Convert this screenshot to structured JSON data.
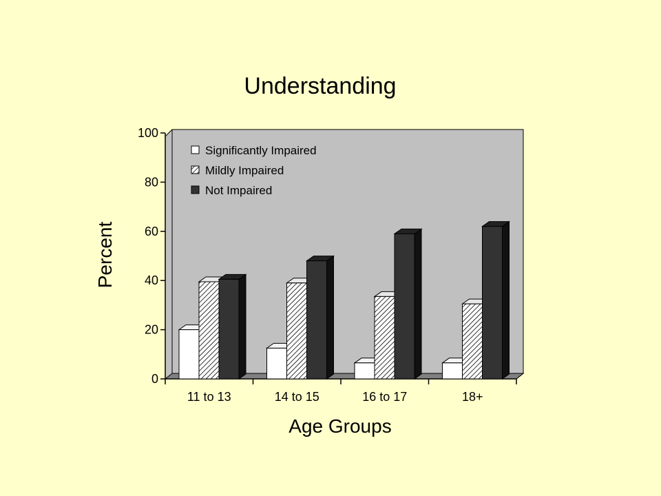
{
  "chart_data": {
    "type": "bar",
    "title": "Understanding",
    "xlabel": "Age Groups",
    "ylabel": "Percent",
    "ylim": [
      0,
      100
    ],
    "yticks": [
      "0",
      "20",
      "40",
      "60",
      "80",
      "100"
    ],
    "categories": [
      "11 to 13",
      "14 to 15",
      "16 to 17",
      "18+"
    ],
    "series": [
      {
        "name": "Significantly Impaired",
        "values": [
          20,
          12.5,
          6.5,
          6.5
        ],
        "fill": "white"
      },
      {
        "name": "Mildly Impaired",
        "values": [
          39.5,
          39,
          33.5,
          30.5
        ],
        "fill": "hatch"
      },
      {
        "name": "Not Impaired",
        "values": [
          40.5,
          48,
          59,
          62
        ],
        "fill": "dark"
      }
    ],
    "legend_position": "top-left",
    "grid": false,
    "colors": {
      "background": "#ffffcc",
      "plot_area": "#c0c0c0",
      "significantly_impaired": "#ffffff",
      "mildly_impaired_hatch": "#ffffff",
      "not_impaired": "#333333"
    }
  }
}
